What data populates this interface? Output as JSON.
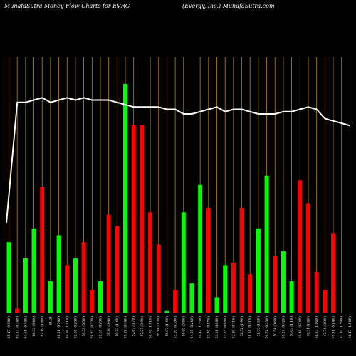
{
  "header": {
    "left_title": "MunafaSutra  Money Flow  Charts for EVRG",
    "right_title": "(Evergy, Inc.) MunafaSutra.com"
  },
  "colors": {
    "background": "#000000",
    "up": "#00ff00",
    "down": "#ff0000",
    "grid": "#b8860b",
    "line": "#ffffff"
  },
  "chart_data": {
    "type": "bar",
    "bar_ylim": [
      0,
      100
    ],
    "line_ylim": [
      0,
      100
    ],
    "categories": [
      "Fri 07 Mar 2025",
      "Thu 06 Mar 2025",
      "Wed 05 Mar 2025",
      "Tue 04 Mar 2025",
      "Mon 03 Mar 2025",
      "Fri 28 Feb 2025",
      "Thu 27 Feb 2025",
      "Wed 26 Feb 2025",
      "Tue 25 Feb 2025",
      "Mon 24 Feb 2025",
      "Fri 21 Feb 2025",
      "Thu 20 Feb 2025",
      "Wed 19 Feb 2025",
      "Tue 18 Feb 2025",
      "Fri 14 Feb 2025",
      "Thu 13 Feb 2025",
      "Wed 12 Feb 2025",
      "Tue 11 Feb 2025",
      "Mon 10 Feb 2025",
      "Fri 07 Feb 2025",
      "Thu 06 Feb 2025",
      "Wed 05 Feb 2025",
      "Tue 04 Feb 2025",
      "Mon 03 Feb 2025",
      "Fri 31 Jan 2025",
      "Thu 30 Jan 2025",
      "Wed 29 Jan 2025",
      "Tue 28 Jan 2025",
      "Mon 27 Jan 2025",
      "Fri 24 Jan 2025",
      "Thu 23 Jan 2025",
      "Wed 22 Jan 2025",
      "Tue 21 Jan 2025",
      "Fri 17 Jan 2025",
      "Thu 16 Jan 2025",
      "Wed 15 Jan 2025",
      "Tue 14 Jan 2025",
      "Mon 13 Jan 2025",
      "Fri 10 Jan 2025",
      "Thu 09 Jan 2025",
      "Wed 08 Jan 2025",
      "Tue 07 Jan 2025"
    ],
    "tick_labels": [
      "65.47 (0.98%)",
      "64.83 (0.34%)",
      "64.61 (0.44%)",
      "64.33 (3.4%)",
      "62.19 (1.6%)",
      "61.21",
      "61.21 (0.74%)",
      "60.76 (1.81%)",
      "59.68 (0.25%)",
      "59.53 (0.5%)",
      "59.23 (0.22%)",
      "59.10 (0.23%)",
      "58.96 (0.4%)",
      "58.73 (1.4%)",
      "57.92 (0.44%)",
      "57.67 (0.7%)",
      "57.27 (0.9%)",
      "56.76 (1.11%)",
      "56.14 (0.3%)",
      "55.97 (1.4%)",
      "55.20 (0.38%)",
      "54.99 (0.8%)",
      "54.55 (0.24%)",
      "54.42 (1.35%)",
      "53.70 (0.17%)",
      "53.61 (0.68%)",
      "53.25 (0.68%)",
      "52.89 (0.71%)",
      "52.52 (1.9%)",
      "51.54 (0.41%)",
      "51.33 (1.2%)",
      "50.72 (0.35%)",
      "50.54 (0.6%)",
      "50.24 (0.42%)",
      "50.03 (1.1%)",
      "49.48 (0.34%)",
      "49.31 (1.4%)",
      "48.63 (1.86%)",
      "47.74 (0.9%)",
      "47.31 (0.24%)",
      "47.20 (1.58%)",
      "46.47 (1.84%)"
    ],
    "series": [
      {
        "type": "bar",
        "values": [
          31,
          2,
          24,
          37,
          55,
          14,
          34,
          21,
          24,
          31,
          10,
          14,
          43,
          38,
          100,
          82,
          82,
          44,
          30,
          1,
          10,
          44,
          13,
          56,
          46,
          7,
          21,
          22,
          46,
          17,
          37,
          60,
          25,
          27,
          14,
          58,
          48,
          18,
          10,
          35,
          0,
          0
        ],
        "directions": [
          "up",
          "down",
          "up",
          "up",
          "down",
          "up",
          "up",
          "down",
          "up",
          "down",
          "down",
          "up",
          "down",
          "down",
          "up",
          "down",
          "down",
          "down",
          "down",
          "up",
          "down",
          "up",
          "up",
          "up",
          "down",
          "up",
          "up",
          "down",
          "down",
          "down",
          "up",
          "up",
          "down",
          "up",
          "up",
          "down",
          "down",
          "down",
          "down",
          "down",
          "none",
          "none"
        ]
      },
      {
        "type": "line",
        "values": [
          33,
          85,
          85,
          86,
          87,
          85,
          86,
          87,
          86,
          87,
          86,
          86,
          86,
          85,
          84,
          83,
          83,
          83,
          83,
          82,
          82,
          80,
          80,
          81,
          82,
          83,
          81,
          82,
          82,
          81,
          80,
          80,
          80,
          81,
          81,
          82,
          83,
          82,
          78,
          77,
          76,
          75
        ]
      }
    ]
  }
}
